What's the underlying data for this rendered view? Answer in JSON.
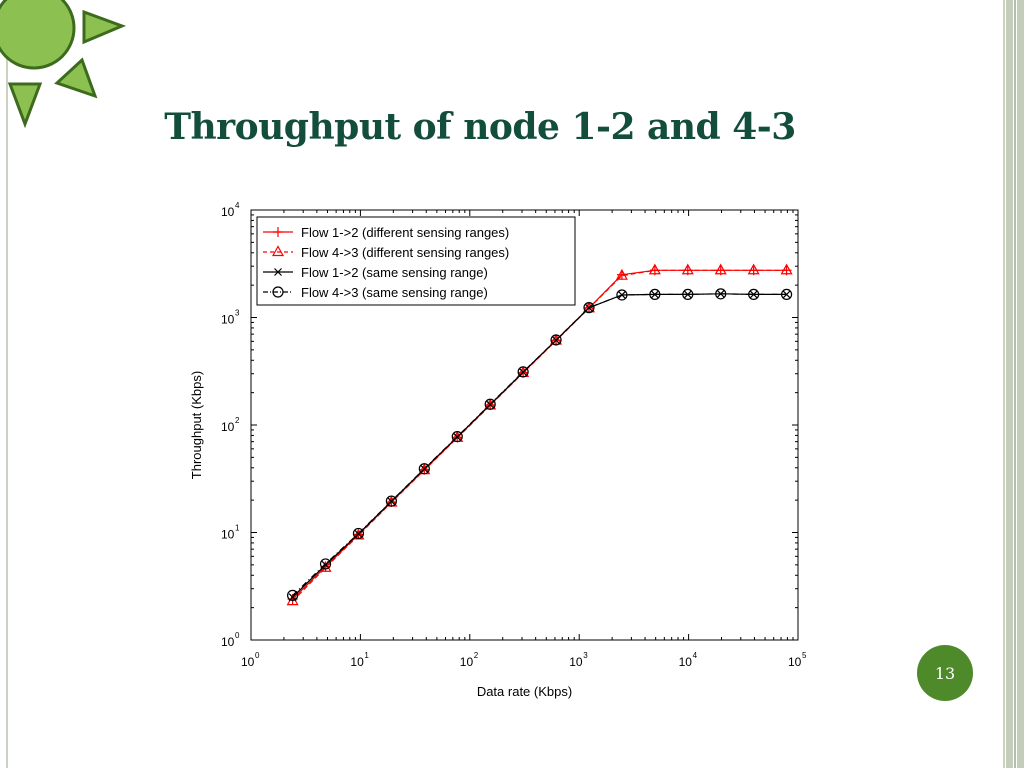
{
  "slide": {
    "title": "Throughput of node 1-2 and 4-3",
    "page_number": "13",
    "colors": {
      "title": "#134d3c",
      "badge": "#4e8a2a",
      "sun": "#8cc151",
      "sun_outline": "#3d6b1d"
    }
  },
  "chart_data": {
    "type": "line",
    "title": "",
    "xlabel": "Data rate (Kbps)",
    "ylabel": "Throughput (Kbps)",
    "xscale": "log",
    "yscale": "log",
    "xlim": [
      1,
      100000
    ],
    "ylim": [
      1,
      10000
    ],
    "x_ticks": [
      {
        "base": "10",
        "exp": "0"
      },
      {
        "base": "10",
        "exp": "1"
      },
      {
        "base": "10",
        "exp": "2"
      },
      {
        "base": "10",
        "exp": "3"
      },
      {
        "base": "10",
        "exp": "4"
      },
      {
        "base": "10",
        "exp": "5"
      }
    ],
    "y_ticks": [
      {
        "base": "10",
        "exp": "0"
      },
      {
        "base": "10",
        "exp": "1"
      },
      {
        "base": "10",
        "exp": "2"
      },
      {
        "base": "10",
        "exp": "3"
      },
      {
        "base": "10",
        "exp": "4"
      }
    ],
    "legend_position": "top-left",
    "x": [
      2.4,
      4.8,
      9.6,
      19.2,
      38.4,
      76.8,
      153.6,
      307.2,
      614.4,
      1228.8,
      2457.6,
      4915.2,
      9830.4,
      19660.8,
      39321.6,
      78643.2
    ],
    "series": [
      {
        "name": "Flow 1->2 (different sensing ranges)",
        "color": "#ff0000",
        "dash": "solid",
        "marker": "plus",
        "values": [
          2.4,
          4.8,
          9.6,
          19.2,
          38.4,
          76.8,
          153.6,
          307.2,
          614.4,
          1228.8,
          2500,
          2750,
          2750,
          2750,
          2750,
          2750
        ]
      },
      {
        "name": "Flow 4->3 (different sensing ranges)",
        "color": "#ff0000",
        "dash": "dashed",
        "marker": "triangle",
        "values": [
          2.3,
          4.7,
          9.4,
          19.0,
          38.0,
          76.0,
          152.0,
          305.0,
          610.0,
          1220.0,
          2450,
          2750,
          2750,
          2750,
          2750,
          2750
        ]
      },
      {
        "name": "Flow 1->2 (same sensing range)",
        "color": "#000000",
        "dash": "solid",
        "marker": "x",
        "values": [
          2.5,
          5.0,
          9.7,
          19.5,
          39.0,
          77.5,
          155.0,
          310.0,
          615.0,
          1230.0,
          1620,
          1640,
          1640,
          1660,
          1640,
          1640
        ]
      },
      {
        "name": "Flow 4->3 (same sensing range)",
        "color": "#000000",
        "dash": "dashdot",
        "marker": "circle",
        "values": [
          2.6,
          5.1,
          9.8,
          19.6,
          39.2,
          78.0,
          156.0,
          312.0,
          618.0,
          1235.0,
          1620,
          1640,
          1640,
          1660,
          1640,
          1640
        ]
      }
    ]
  }
}
